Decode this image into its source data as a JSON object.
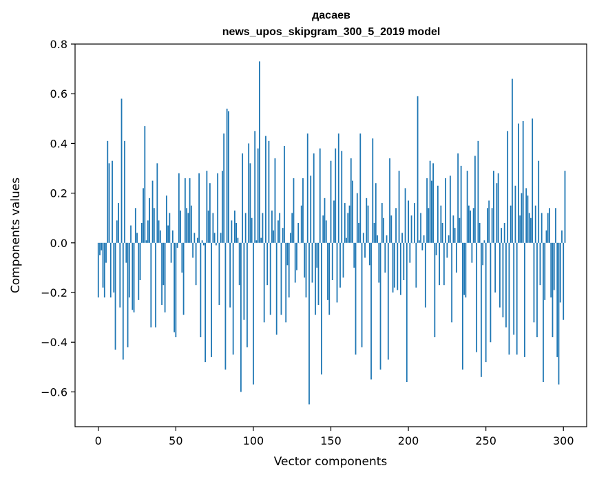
{
  "chart_data": {
    "type": "bar",
    "title_line1": "дасаев",
    "title_line2": "news_upos_skipgram_300_5_2019 model",
    "xlabel": "Vector components",
    "ylabel": "Components values",
    "xlim": [
      -15,
      315
    ],
    "ylim": [
      -0.74,
      0.8
    ],
    "xticks": [
      0,
      50,
      100,
      150,
      200,
      250,
      300
    ],
    "xtick_labels": [
      "0",
      "50",
      "100",
      "150",
      "200",
      "250",
      "300"
    ],
    "yticks": [
      -0.6,
      -0.4,
      -0.2,
      0.0,
      0.2,
      0.4,
      0.6,
      0.8
    ],
    "ytick_labels": [
      "−0.6",
      "−0.4",
      "−0.2",
      "0.0",
      "0.2",
      "0.4",
      "0.6",
      "0.8"
    ],
    "grid": false,
    "bar_color": "#1f77b4",
    "values": [
      -0.22,
      -0.05,
      -0.03,
      -0.18,
      -0.22,
      -0.08,
      0.41,
      0.32,
      -0.22,
      0.33,
      -0.2,
      -0.43,
      0.09,
      0.16,
      -0.26,
      0.58,
      -0.47,
      0.41,
      -0.08,
      -0.42,
      -0.22,
      0.07,
      -0.27,
      -0.28,
      0.14,
      0.04,
      -0.23,
      -0.15,
      0.08,
      0.22,
      0.47,
      0.01,
      0.09,
      0.18,
      -0.34,
      0.25,
      0.14,
      -0.34,
      0.32,
      0.09,
      0.05,
      -0.25,
      -0.17,
      -0.28,
      0.19,
      0.07,
      0.12,
      -0.08,
      0.05,
      -0.36,
      -0.38,
      -0.02,
      0.28,
      0.13,
      -0.12,
      -0.29,
      0.26,
      0.14,
      0.12,
      0.26,
      0.15,
      -0.06,
      0.04,
      -0.17,
      0.02,
      0.28,
      -0.38,
      0.01,
      -0.01,
      -0.48,
      0.29,
      0.13,
      0.24,
      -0.46,
      0.12,
      0.04,
      -0.01,
      0.28,
      -0.25,
      0.04,
      0.29,
      0.44,
      -0.51,
      0.54,
      0.53,
      -0.26,
      0.09,
      -0.45,
      0.13,
      0.08,
      0.02,
      -0.17,
      -0.6,
      0.36,
      -0.31,
      0.12,
      -0.42,
      0.4,
      0.32,
      0.1,
      -0.57,
      0.45,
      0.01,
      0.38,
      0.73,
      0.02,
      0.12,
      -0.32,
      0.43,
      -0.17,
      0.41,
      -0.29,
      0.13,
      0.05,
      0.34,
      -0.37,
      0.09,
      0.12,
      -0.29,
      0.06,
      0.39,
      -0.32,
      -0.09,
      -0.22,
      0.04,
      0.12,
      0.26,
      -0.16,
      -0.11,
      0.08,
      0.0,
      0.15,
      0.26,
      -0.14,
      -0.22,
      0.44,
      -0.65,
      0.27,
      -0.16,
      0.36,
      -0.29,
      -0.1,
      -0.25,
      0.38,
      -0.53,
      0.11,
      0.18,
      0.09,
      -0.23,
      -0.29,
      0.33,
      -0.15,
      0.17,
      0.38,
      -0.24,
      0.44,
      -0.18,
      0.37,
      -0.14,
      0.16,
      0.02,
      0.12,
      0.15,
      0.34,
      0.25,
      -0.1,
      -0.45,
      0.2,
      0.08,
      0.44,
      -0.42,
      0.04,
      -0.06,
      0.18,
      0.15,
      -0.09,
      -0.55,
      0.42,
      0.08,
      0.24,
      0.03,
      -0.16,
      -0.51,
      0.16,
      0.1,
      -0.12,
      0.03,
      -0.47,
      0.34,
      0.11,
      -0.2,
      -0.18,
      0.14,
      -0.19,
      0.29,
      -0.21,
      0.04,
      -0.15,
      0.22,
      -0.56,
      0.17,
      -0.08,
      0.11,
      0.0,
      0.16,
      -0.18,
      0.59,
      0.01,
      0.12,
      -0.03,
      0.03,
      -0.26,
      0.26,
      0.14,
      0.33,
      0.25,
      0.32,
      -0.38,
      -0.05,
      0.23,
      -0.17,
      0.15,
      0.08,
      -0.17,
      0.26,
      -0.06,
      0.03,
      0.27,
      -0.32,
      0.11,
      0.06,
      -0.12,
      0.36,
      0.1,
      0.31,
      -0.51,
      -0.21,
      -0.22,
      0.29,
      0.15,
      0.13,
      -0.08,
      0.14,
      0.35,
      -0.44,
      0.41,
      0.08,
      -0.54,
      -0.09,
      0.01,
      -0.48,
      0.14,
      0.17,
      -0.4,
      0.14,
      0.29,
      -0.2,
      0.24,
      0.28,
      -0.26,
      0.06,
      -0.3,
      0.08,
      -0.34,
      0.45,
      -0.45,
      0.15,
      0.66,
      -0.37,
      0.23,
      -0.45,
      0.48,
      0.11,
      0.2,
      0.49,
      -0.46,
      0.22,
      0.19,
      0.12,
      0.1,
      0.5,
      -0.32,
      0.15,
      -0.38,
      0.33,
      -0.17,
      0.12,
      -0.56,
      -0.23,
      0.05,
      0.12,
      0.14,
      -0.22,
      -0.38,
      -0.19,
      0.14,
      -0.46,
      -0.57,
      -0.24,
      0.05,
      -0.31,
      0.29
    ]
  }
}
